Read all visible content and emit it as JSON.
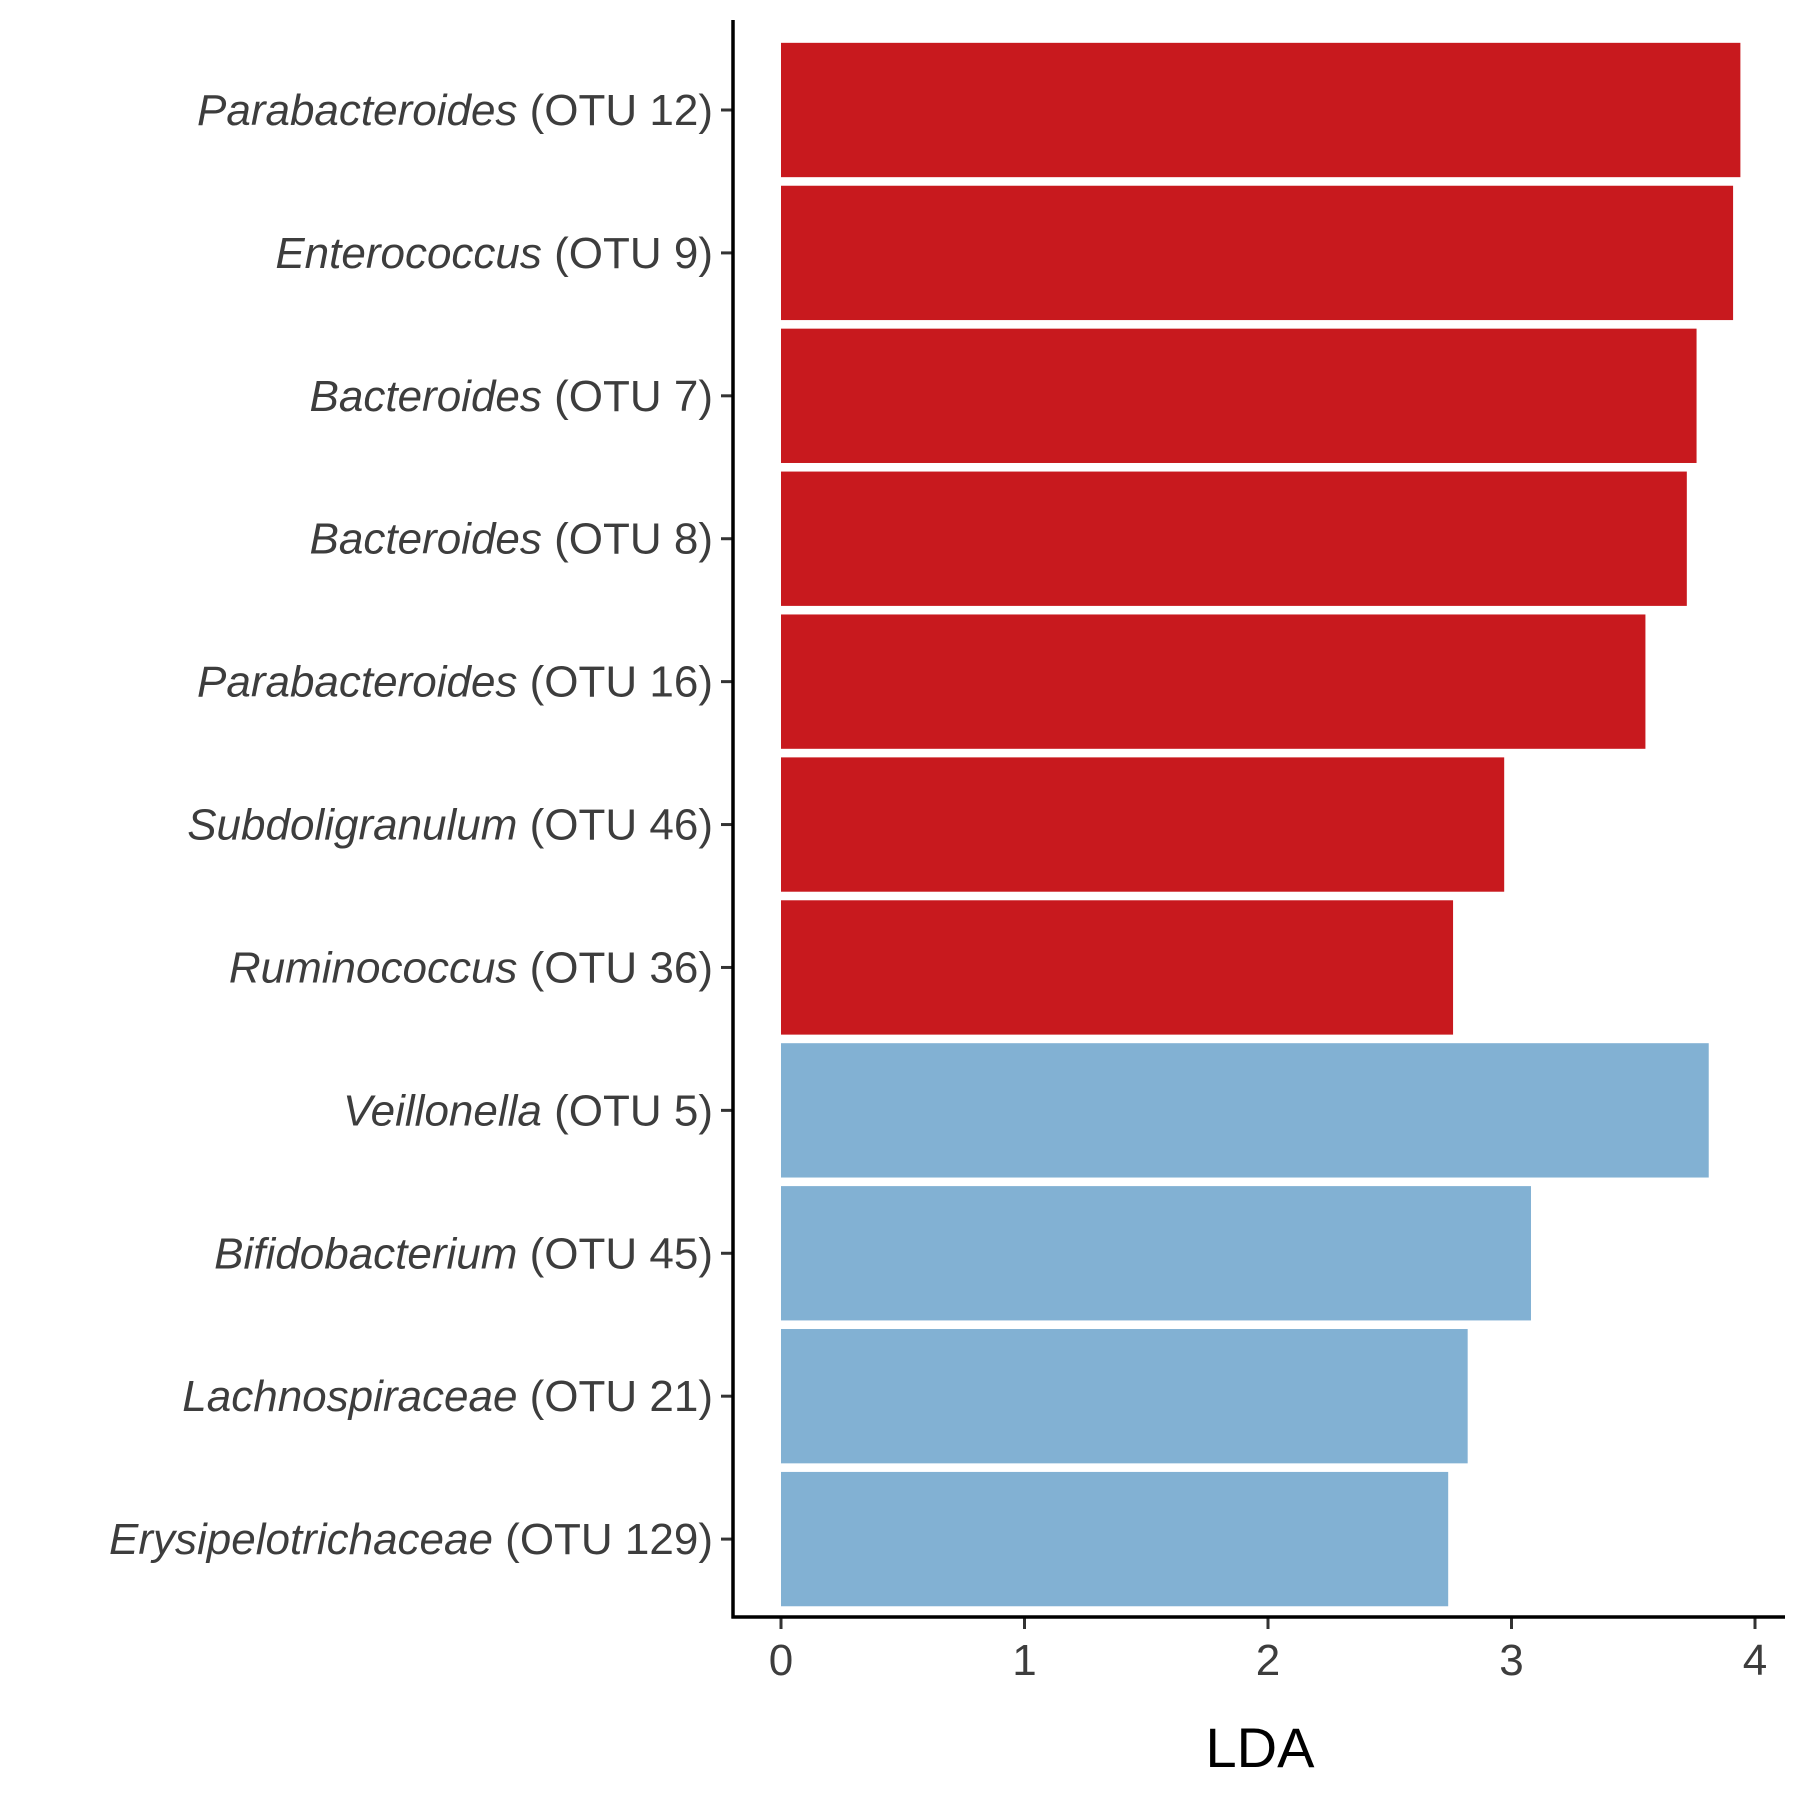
{
  "chart_data": {
    "type": "bar",
    "orientation": "horizontal",
    "xlabel": "LDA",
    "ylabel": "",
    "xlim": [
      -0.19,
      4.12
    ],
    "x_ticks": [
      "0",
      "1",
      "2",
      "3",
      "4"
    ],
    "grid": false,
    "legend": "none",
    "colors": {
      "red": "#c8191e",
      "blue": "#82b1d3"
    },
    "bars": [
      {
        "genus": "Parabacteroides",
        "otu": " (OTU 12)",
        "value": 3.94,
        "color": "#c8191e"
      },
      {
        "genus": "Enterococcus",
        "otu": " (OTU 9)",
        "value": 3.91,
        "color": "#c8191e"
      },
      {
        "genus": "Bacteroides",
        "otu": " (OTU 7)",
        "value": 3.76,
        "color": "#c8191e"
      },
      {
        "genus": "Bacteroides",
        "otu": " (OTU 8)",
        "value": 3.72,
        "color": "#c8191e"
      },
      {
        "genus": "Parabacteroides",
        "otu": " (OTU 16)",
        "value": 3.55,
        "color": "#c8191e"
      },
      {
        "genus": "Subdoligranulum",
        "otu": " (OTU 46)",
        "value": 2.97,
        "color": "#c8191e"
      },
      {
        "genus": "Ruminococcus",
        "otu": " (OTU 36)",
        "value": 2.76,
        "color": "#c8191e"
      },
      {
        "genus": "Veillonella",
        "otu": " (OTU 5)",
        "value": 3.81,
        "color": "#82b1d3"
      },
      {
        "genus": "Bifidobacterium",
        "otu": " (OTU 45)",
        "value": 3.08,
        "color": "#82b1d3"
      },
      {
        "genus": "Lachnospiraceae",
        "otu": " (OTU 21)",
        "value": 2.82,
        "color": "#82b1d3"
      },
      {
        "genus": "Erysipelotrichaceae",
        "otu": " (OTU 129)",
        "value": 2.74,
        "color": "#82b1d3"
      }
    ]
  }
}
